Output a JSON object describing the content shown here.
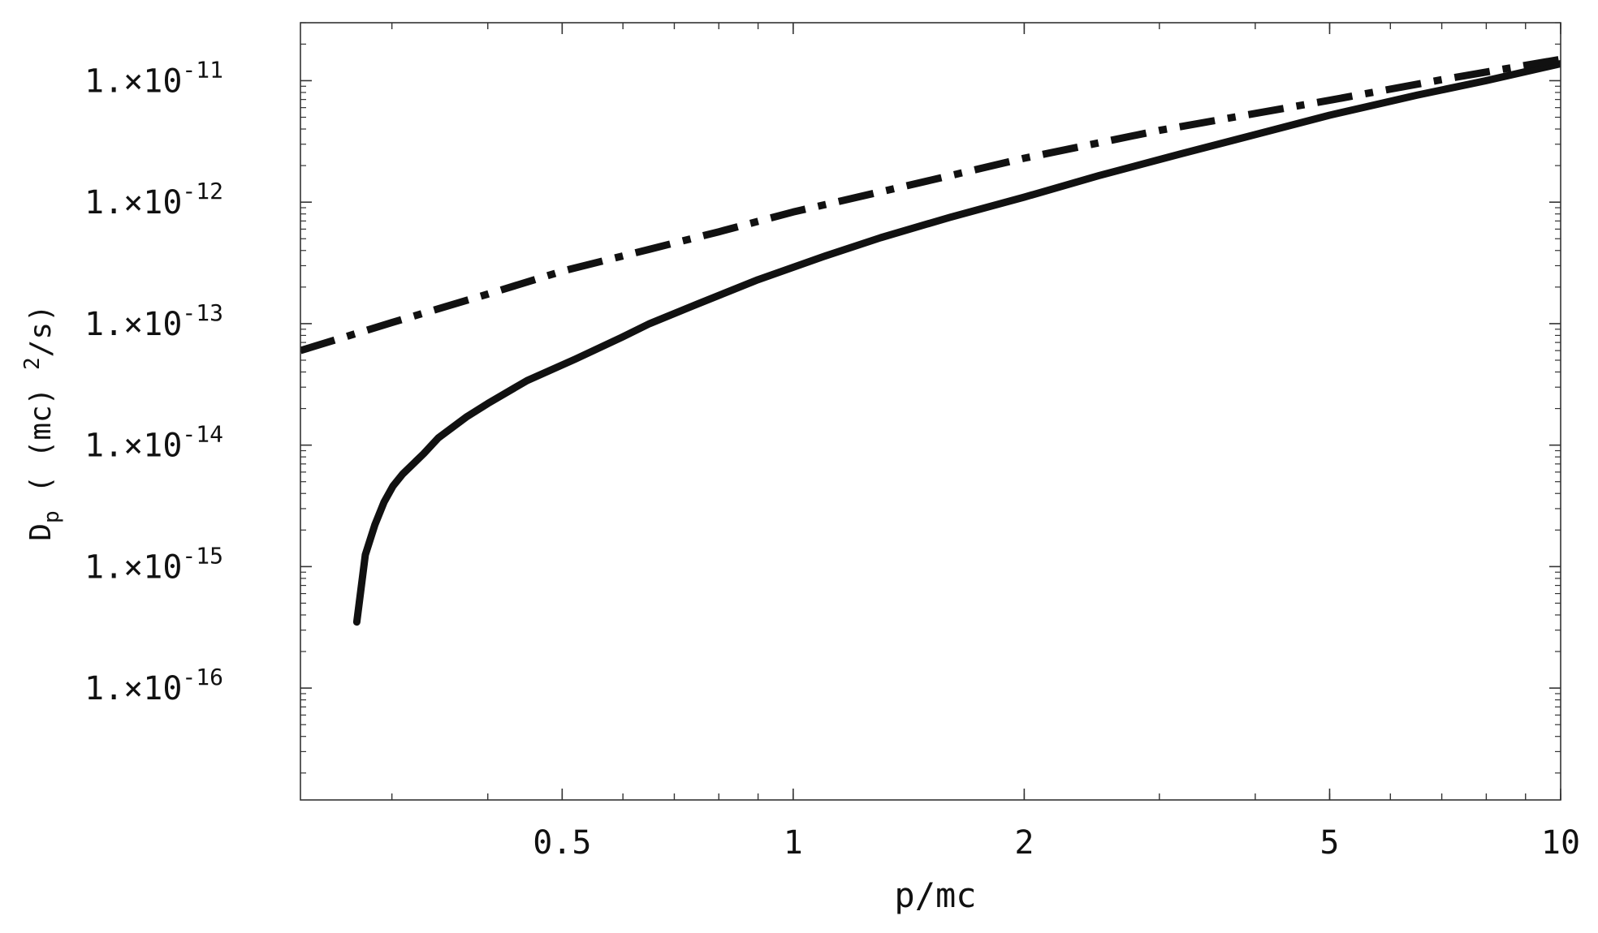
{
  "chart_data": {
    "type": "line",
    "title": "",
    "xlabel": "p/mc",
    "ylabel": {
      "main": "D",
      "subscript": "p",
      "unit_prefix": " ( (mc) ",
      "unit_exp": "2",
      "unit_suffix": "/s)"
    },
    "x_scale": "log",
    "y_scale": "log",
    "xlim": [
      0.228,
      10
    ],
    "ylim": [
      1.2e-17,
      3e-11
    ],
    "grid": false,
    "legend": "none",
    "x_ticks": [
      {
        "value": 0.5,
        "label": "0.5"
      },
      {
        "value": 1,
        "label": "1"
      },
      {
        "value": 2,
        "label": "2"
      },
      {
        "value": 5,
        "label": "5"
      },
      {
        "value": 10,
        "label": "10"
      }
    ],
    "y_ticks": [
      {
        "value": 1e-11,
        "mantissa": "1.×10",
        "exponent": "-11"
      },
      {
        "value": 1e-12,
        "mantissa": "1.×10",
        "exponent": "-12"
      },
      {
        "value": 1e-13,
        "mantissa": "1.×10",
        "exponent": "-13"
      },
      {
        "value": 1e-14,
        "mantissa": "1.×10",
        "exponent": "-14"
      },
      {
        "value": 1e-15,
        "mantissa": "1.×10",
        "exponent": "-15"
      },
      {
        "value": 1e-16,
        "mantissa": "1.×10",
        "exponent": "-16"
      }
    ],
    "series": [
      {
        "style": "solid",
        "color": "#111111",
        "points": [
          [
            0.27,
            3.5e-16
          ],
          [
            0.277,
            1.25e-15
          ],
          [
            0.285,
            2.2e-15
          ],
          [
            0.293,
            3.4e-15
          ],
          [
            0.301,
            4.6e-15
          ],
          [
            0.31,
            5.8e-15
          ],
          [
            0.33,
            8.5e-15
          ],
          [
            0.345,
            1.15e-14
          ],
          [
            0.375,
            1.7e-14
          ],
          [
            0.4,
            2.2e-14
          ],
          [
            0.45,
            3.4e-14
          ],
          [
            0.52,
            5.1e-14
          ],
          [
            0.6,
            7.8e-14
          ],
          [
            0.65,
            1e-13
          ],
          [
            0.75,
            1.45e-13
          ],
          [
            0.9,
            2.3e-13
          ],
          [
            1.1,
            3.6e-13
          ],
          [
            1.3,
            5.1e-13
          ],
          [
            1.6,
            7.5e-13
          ],
          [
            2.0,
            1.1e-12
          ],
          [
            2.5,
            1.65e-12
          ],
          [
            3.2,
            2.5e-12
          ],
          [
            4.0,
            3.6e-12
          ],
          [
            5.0,
            5.2e-12
          ],
          [
            6.5,
            7.6e-12
          ],
          [
            8.0,
            1e-11
          ],
          [
            10.0,
            1.38e-11
          ]
        ]
      },
      {
        "style": "dash-dot",
        "color": "#111111",
        "points": [
          [
            0.228,
            6e-14
          ],
          [
            0.3,
            1.02e-13
          ],
          [
            0.4,
            1.75e-13
          ],
          [
            0.5,
            2.7e-13
          ],
          [
            0.65,
            4.1e-13
          ],
          [
            0.8,
            5.7e-13
          ],
          [
            1.0,
            8.3e-13
          ],
          [
            1.5,
            1.5e-12
          ],
          [
            2.0,
            2.3e-12
          ],
          [
            3.0,
            3.9e-12
          ],
          [
            5.0,
            6.9e-12
          ],
          [
            7.0,
            1.02e-11
          ],
          [
            10.0,
            1.5e-11
          ]
        ]
      }
    ]
  }
}
